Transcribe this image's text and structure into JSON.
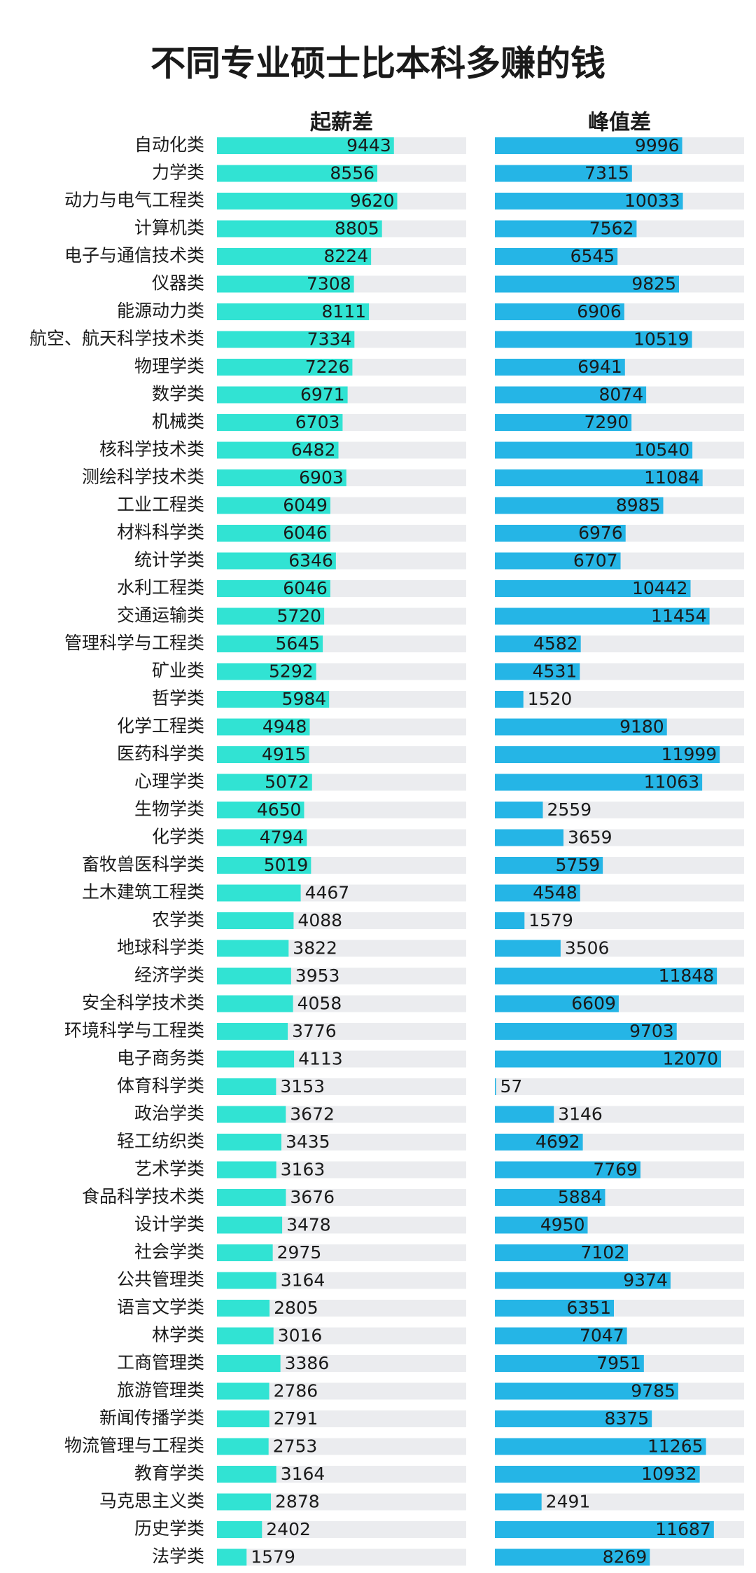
{
  "chart_data": {
    "type": "bar",
    "orientation": "horizontal",
    "title": "不同专业硕士比本科多赚的钱",
    "categories": [
      "自动化类",
      "力学类",
      "动力与电气工程类",
      "计算机类",
      "电子与通信技术类",
      "仪器类",
      "能源动力类",
      "航空、航天科学技术类",
      "物理学类",
      "数学类",
      "机械类",
      "核科学技术类",
      "测绘科学技术类",
      "工业工程类",
      "材料科学类",
      "统计学类",
      "水利工程类",
      "交通运输类",
      "管理科学与工程类",
      "矿业类",
      "哲学类",
      "化学工程类",
      "医药科学类",
      "心理学类",
      "生物学类",
      "化学类",
      "畜牧兽医科学类",
      "土木建筑工程类",
      "农学类",
      "地球科学类",
      "经济学类",
      "安全科学技术类",
      "环境科学与工程类",
      "电子商务类",
      "体育科学类",
      "政治学类",
      "轻工纺织类",
      "艺术学类",
      "食品科学技术类",
      "设计学类",
      "社会学类",
      "公共管理类",
      "语言文学类",
      "林学类",
      "工商管理类",
      "旅游管理类",
      "新闻传播学类",
      "物流管理与工程类",
      "教育学类",
      "马克思主义类",
      "历史学类",
      "法学类"
    ],
    "series": [
      {
        "name": "起薪差",
        "color": "#31e3d3",
        "values": [
          9443,
          8556,
          9620,
          8805,
          8224,
          7308,
          8111,
          7334,
          7226,
          6971,
          6703,
          6482,
          6903,
          6049,
          6046,
          6346,
          6046,
          5720,
          5645,
          5292,
          5984,
          4948,
          4915,
          5072,
          4650,
          4794,
          5019,
          4467,
          4088,
          3822,
          3953,
          4058,
          3776,
          4113,
          3153,
          3672,
          3435,
          3163,
          3676,
          3478,
          2975,
          3164,
          2805,
          3016,
          3386,
          2786,
          2791,
          2753,
          3164,
          2878,
          2402,
          1579
        ]
      },
      {
        "name": "峰值差",
        "color": "#25b5e6",
        "values": [
          9996,
          7315,
          10033,
          7562,
          6545,
          9825,
          6906,
          10519,
          6941,
          8074,
          7290,
          10540,
          11084,
          8985,
          6976,
          6707,
          10442,
          11454,
          4582,
          4531,
          1520,
          9180,
          11999,
          11063,
          2559,
          3659,
          5759,
          4548,
          1579,
          3506,
          11848,
          6609,
          9703,
          12070,
          57,
          3146,
          4692,
          7769,
          5884,
          4950,
          7102,
          9374,
          6351,
          7047,
          7951,
          9785,
          8375,
          11265,
          10932,
          2491,
          11687,
          8269
        ]
      }
    ],
    "xlim": [
      0,
      13300
    ]
  }
}
